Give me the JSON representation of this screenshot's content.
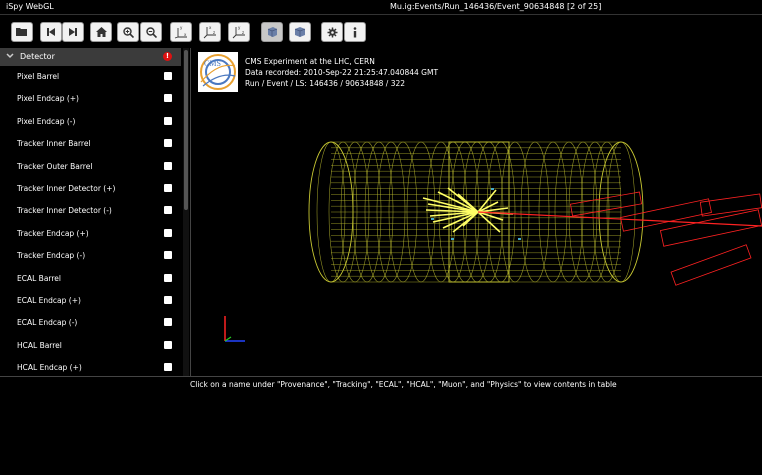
{
  "titlebar": {
    "app_name": "iSpy WebGL",
    "path": "Mu.ig:Events/Run_146436/Event_90634848 [2 of 25]"
  },
  "toolbar": {
    "buttons": [
      {
        "icon": "folder-open-icon"
      },
      {
        "icon": "skip-back-icon"
      },
      {
        "icon": "skip-forward-icon"
      },
      {
        "icon": "home-icon"
      },
      {
        "icon": "zoom-in-icon"
      },
      {
        "icon": "zoom-out-icon"
      },
      {
        "icon": "view-xy-icon"
      },
      {
        "icon": "view-zx-icon"
      },
      {
        "icon": "view-yz-icon"
      },
      {
        "icon": "perspective-cube-icon"
      },
      {
        "icon": "orthographic-cube-icon"
      },
      {
        "icon": "gear-icon"
      },
      {
        "icon": "info-icon"
      }
    ]
  },
  "sidebar": {
    "section_title": "Detector",
    "items": [
      {
        "label": "Pixel Barrel"
      },
      {
        "label": "Pixel Endcap (+)"
      },
      {
        "label": "Pixel Endcap (-)"
      },
      {
        "label": "Tracker Inner Barrel"
      },
      {
        "label": "Tracker Outer Barrel"
      },
      {
        "label": "Tracker Inner Detector (+)"
      },
      {
        "label": "Tracker Inner Detector (-)"
      },
      {
        "label": "Tracker Endcap (+)"
      },
      {
        "label": "Tracker Endcap (-)"
      },
      {
        "label": "ECAL Barrel"
      },
      {
        "label": "ECAL Endcap (+)"
      },
      {
        "label": "ECAL Endcap (-)"
      },
      {
        "label": "HCAL Barrel"
      },
      {
        "label": "HCAL Endcap (+)"
      }
    ]
  },
  "event_info": {
    "line1": "CMS Experiment at the LHC, CERN",
    "line2": "Data recorded: 2010-Sep-22 21:25:47.040844 GMT",
    "line3": "Run / Event / LS: 146436 / 90634848 / 322",
    "logo_text": "CMS"
  },
  "status": {
    "message": "Click on a name under \"Provenance\", \"Tracking\", \"ECAL\", \"HCAL\", \"Muon\", and \"Physics\" to view contents in table"
  },
  "colors": {
    "detector_wire": "#c8c832",
    "tracks": "#ffff66",
    "muon": "#ff2222",
    "axis_x": "#2244ff",
    "axis_y": "#ff2222"
  }
}
